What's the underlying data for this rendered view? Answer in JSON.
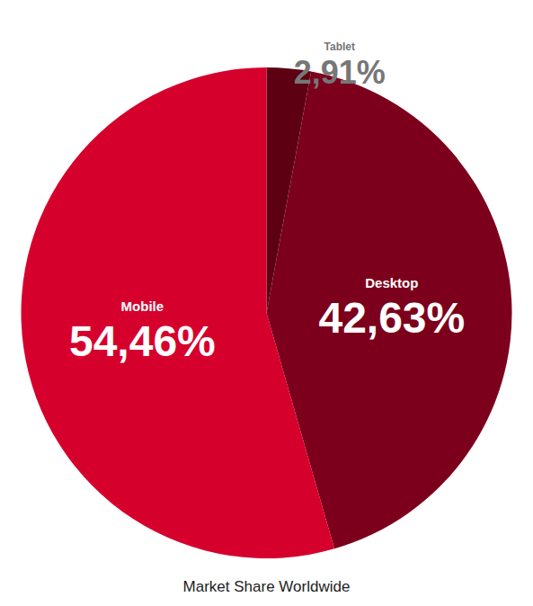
{
  "chart_data": {
    "type": "pie",
    "title": "Market Share Worldwide",
    "categories": [
      "Tablet",
      "Desktop",
      "Mobile"
    ],
    "values": [
      2.91,
      42.63,
      54.46
    ],
    "value_labels": [
      "2,91%",
      "42,63%",
      "54,46%"
    ],
    "colors": [
      "#5c0012",
      "#7c001b",
      "#d6002c"
    ],
    "data_labels": true
  }
}
